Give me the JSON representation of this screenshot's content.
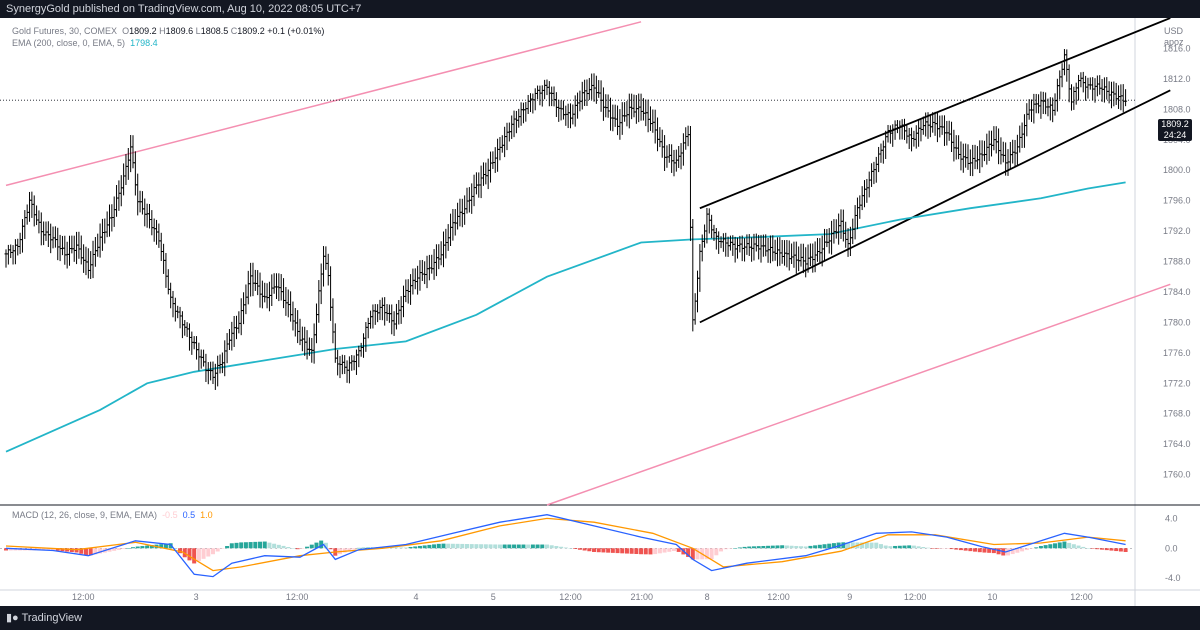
{
  "header": {
    "publisher": "SynergyGold published on TradingView.com, Aug 10, 2022 08:05 UTC+7"
  },
  "footer": {
    "brand": "TradingView"
  },
  "legend": {
    "symbol": "Gold Futures, 30, COMEX",
    "o_label": "O",
    "o": "1809.2",
    "h_label": "H",
    "h": "1809.6",
    "l_label": "L",
    "l": "1808.5",
    "c_label": "C",
    "c": "1809.2",
    "change": "+0.1 (+0.01%)",
    "ema_label": "EMA (200, close, 0, EMA, 5)",
    "ema_value": "1798.4",
    "macd_label": "MACD (12, 26, close, 9, EMA, EMA)",
    "macd_hist": "-0.5",
    "macd_line": "0.5",
    "macd_signal": "1.0"
  },
  "price_axis": {
    "currency": "USD",
    "unit": "apoz",
    "last_price": "1809.2",
    "countdown": "24:24"
  },
  "colors": {
    "ema": "#22b5c8",
    "outer_channel": "#f48fb1",
    "inner_channel": "#000000",
    "bar": "#000000",
    "macd_line": "#2962ff",
    "signal_line": "#ff9800",
    "hist_pos_strong": "#26a69a",
    "hist_pos_weak": "#b2dfdb",
    "hist_neg_strong": "#ef5350",
    "hist_neg_weak": "#ffcdd2"
  },
  "chart_data": [
    {
      "type": "ohlc",
      "symbol": "Gold Futures, 30, COMEX",
      "ylim": [
        1756,
        1820
      ],
      "y_ticks": [
        "1816.0",
        "1812.0",
        "1808.0",
        "1804.0",
        "1800.0",
        "1796.0",
        "1792.0",
        "1788.0",
        "1784.0",
        "1780.0",
        "1776.0",
        "1772.0",
        "1768.0",
        "1764.0",
        "1760.0"
      ],
      "x_ticks": [
        "12:00",
        "3",
        "12:00",
        "4",
        "5",
        "12:00",
        "21:00",
        "8",
        "12:00",
        "9",
        "12:00",
        "10",
        "12:00"
      ],
      "close_path": [
        [
          0,
          1789
        ],
        [
          5,
          1790
        ],
        [
          10,
          1796
        ],
        [
          15,
          1792
        ],
        [
          20,
          1791
        ],
        [
          25,
          1789
        ],
        [
          30,
          1790
        ],
        [
          35,
          1787
        ],
        [
          40,
          1791
        ],
        [
          45,
          1794
        ],
        [
          50,
          1799
        ],
        [
          53,
          1803
        ],
        [
          56,
          1796
        ],
        [
          60,
          1794
        ],
        [
          65,
          1791
        ],
        [
          70,
          1783
        ],
        [
          75,
          1780
        ],
        [
          80,
          1777
        ],
        [
          85,
          1774
        ],
        [
          88,
          1773
        ],
        [
          92,
          1775
        ],
        [
          95,
          1778
        ],
        [
          99,
          1780
        ],
        [
          104,
          1786
        ],
        [
          110,
          1783
        ],
        [
          115,
          1785
        ],
        [
          120,
          1782
        ],
        [
          125,
          1778
        ],
        [
          130,
          1776
        ],
        [
          135,
          1789
        ],
        [
          137,
          1786
        ],
        [
          140,
          1775
        ],
        [
          145,
          1774
        ],
        [
          150,
          1776
        ],
        [
          155,
          1781
        ],
        [
          160,
          1782
        ],
        [
          165,
          1780
        ],
        [
          170,
          1784
        ],
        [
          175,
          1786
        ],
        [
          180,
          1787
        ],
        [
          185,
          1789
        ],
        [
          190,
          1793
        ],
        [
          195,
          1795
        ],
        [
          200,
          1798
        ],
        [
          205,
          1800
        ],
        [
          210,
          1803
        ],
        [
          215,
          1806
        ],
        [
          220,
          1808
        ],
        [
          225,
          1810
        ],
        [
          230,
          1811
        ],
        [
          235,
          1808
        ],
        [
          240,
          1807
        ],
        [
          245,
          1810
        ],
        [
          250,
          1811
        ],
        [
          255,
          1808
        ],
        [
          260,
          1806
        ],
        [
          265,
          1808
        ],
        [
          270,
          1808
        ],
        [
          275,
          1806
        ],
        [
          280,
          1802
        ],
        [
          285,
          1801
        ],
        [
          290,
          1805
        ],
        [
          292,
          1780
        ],
        [
          295,
          1789
        ],
        [
          298,
          1794
        ],
        [
          302,
          1791
        ],
        [
          310,
          1790
        ],
        [
          320,
          1790
        ],
        [
          330,
          1789
        ],
        [
          340,
          1788
        ],
        [
          345,
          1789
        ],
        [
          350,
          1791
        ],
        [
          355,
          1793
        ],
        [
          358,
          1790
        ],
        [
          362,
          1795
        ],
        [
          366,
          1798
        ],
        [
          370,
          1801
        ],
        [
          375,
          1805
        ],
        [
          380,
          1806
        ],
        [
          385,
          1804
        ],
        [
          390,
          1806
        ],
        [
          395,
          1806
        ],
        [
          400,
          1805
        ],
        [
          405,
          1802
        ],
        [
          410,
          1801
        ],
        [
          415,
          1802
        ],
        [
          420,
          1804
        ],
        [
          425,
          1801
        ],
        [
          430,
          1803
        ],
        [
          435,
          1808
        ],
        [
          440,
          1809
        ],
        [
          445,
          1808
        ],
        [
          450,
          1815
        ],
        [
          453,
          1809
        ],
        [
          456,
          1812
        ],
        [
          460,
          1811
        ],
        [
          465,
          1811
        ],
        [
          470,
          1810
        ],
        [
          476,
          1809.2
        ]
      ],
      "ema200": [
        [
          0,
          1763
        ],
        [
          40,
          1768.5
        ],
        [
          60,
          1772
        ],
        [
          80,
          1773.5
        ],
        [
          110,
          1775
        ],
        [
          140,
          1776.5
        ],
        [
          170,
          1777.5
        ],
        [
          200,
          1781
        ],
        [
          230,
          1786
        ],
        [
          270,
          1790.5
        ],
        [
          292,
          1790.9
        ],
        [
          320,
          1791.2
        ],
        [
          350,
          1791.6
        ],
        [
          380,
          1793.5
        ],
        [
          410,
          1795
        ],
        [
          440,
          1796.3
        ],
        [
          460,
          1797.6
        ],
        [
          476,
          1798.4
        ]
      ],
      "channels": [
        {
          "name": "outer-upper",
          "from": [
            0,
            1798
          ],
          "to": [
            270,
            1819.5
          ]
        },
        {
          "name": "outer-lower",
          "from": [
            230,
            1756
          ],
          "to": [
            495,
            1785
          ]
        },
        {
          "name": "inner-upper",
          "from": [
            295,
            1795
          ],
          "to": [
            495,
            1820
          ]
        },
        {
          "name": "inner-lower",
          "from": [
            295,
            1780
          ],
          "to": [
            495,
            1810.5
          ]
        }
      ],
      "last_price": 1809.2
    },
    {
      "type": "macd",
      "ylim": [
        -5.6,
        5.4
      ],
      "y_ticks": [
        "4.0",
        "0.0",
        "-4.0"
      ],
      "macd_line": [
        [
          0,
          0
        ],
        [
          20,
          -0.3
        ],
        [
          35,
          -1
        ],
        [
          55,
          1
        ],
        [
          70,
          0.5
        ],
        [
          80,
          -3.5
        ],
        [
          88,
          -3.8
        ],
        [
          96,
          -2
        ],
        [
          110,
          -1
        ],
        [
          125,
          -1.2
        ],
        [
          135,
          0.5
        ],
        [
          140,
          -1.5
        ],
        [
          150,
          -0.2
        ],
        [
          170,
          0.5
        ],
        [
          190,
          2
        ],
        [
          210,
          3.5
        ],
        [
          230,
          4.5
        ],
        [
          250,
          3
        ],
        [
          270,
          1.5
        ],
        [
          285,
          0.5
        ],
        [
          292,
          -1.5
        ],
        [
          300,
          -3
        ],
        [
          315,
          -2
        ],
        [
          340,
          -1
        ],
        [
          355,
          0.4
        ],
        [
          370,
          2
        ],
        [
          385,
          2.2
        ],
        [
          400,
          1.5
        ],
        [
          415,
          0.2
        ],
        [
          425,
          -0.5
        ],
        [
          435,
          0.5
        ],
        [
          450,
          2
        ],
        [
          460,
          1.5
        ],
        [
          476,
          0.5
        ]
      ],
      "signal_line": [
        [
          0,
          0.3
        ],
        [
          30,
          -0.2
        ],
        [
          55,
          0.8
        ],
        [
          75,
          -0.5
        ],
        [
          88,
          -3
        ],
        [
          100,
          -2.5
        ],
        [
          125,
          -1
        ],
        [
          140,
          -0.5
        ],
        [
          160,
          0
        ],
        [
          185,
          1
        ],
        [
          210,
          3
        ],
        [
          230,
          4
        ],
        [
          250,
          3.5
        ],
        [
          275,
          2
        ],
        [
          292,
          0
        ],
        [
          305,
          -2.5
        ],
        [
          330,
          -1.8
        ],
        [
          355,
          -0.4
        ],
        [
          375,
          1.8
        ],
        [
          395,
          1.8
        ],
        [
          420,
          0.5
        ],
        [
          440,
          0.7
        ],
        [
          460,
          1.5
        ],
        [
          476,
          1.0
        ]
      ],
      "latest": {
        "hist": -0.5,
        "macd": 0.5,
        "signal": 1.0
      }
    }
  ]
}
